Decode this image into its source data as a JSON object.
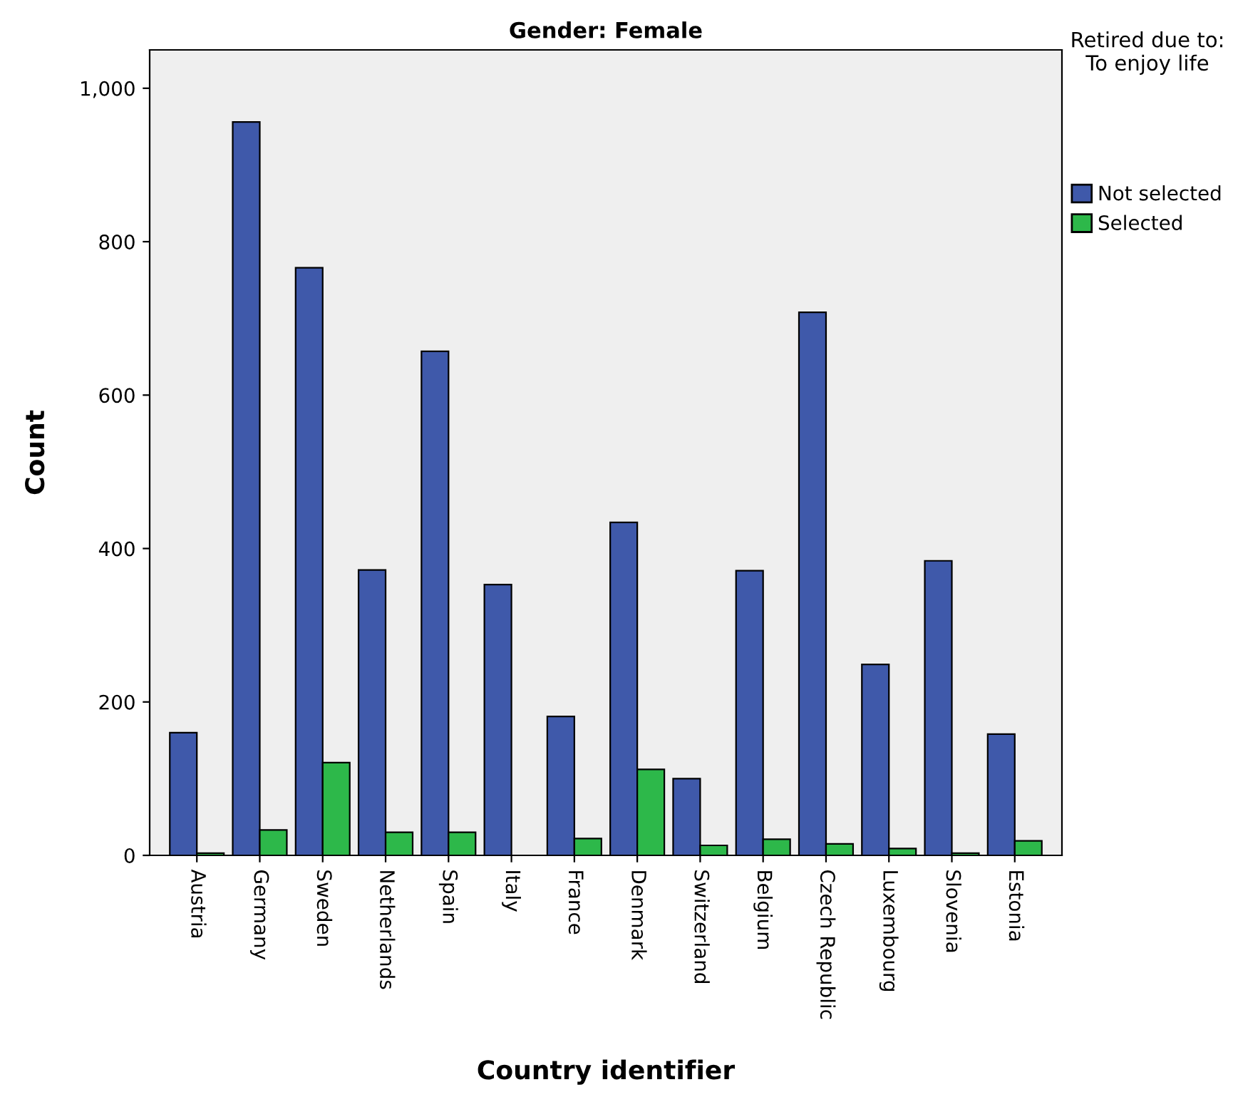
{
  "chart_data": {
    "type": "bar",
    "title": "Gender: Female",
    "xlabel": "Country identifier",
    "ylabel": "Count",
    "legend_title": "Retired due to: To enjoy life",
    "legend": "right",
    "categories": [
      "Austria",
      "Germany",
      "Sweden",
      "Netherlands",
      "Spain",
      "Italy",
      "France",
      "Denmark",
      "Switzerland",
      "Belgium",
      "Czech Republic",
      "Luxembourg",
      "Slovenia",
      "Estonia"
    ],
    "series": [
      {
        "name": "Not selected",
        "color": "#3f59aa",
        "values": [
          160,
          956,
          766,
          372,
          657,
          353,
          181,
          434,
          100,
          371,
          708,
          249,
          384,
          158
        ]
      },
      {
        "name": "Selected",
        "color": "#2db84a",
        "values": [
          3,
          33,
          121,
          30,
          30,
          null,
          22,
          112,
          13,
          21,
          15,
          9,
          3,
          19
        ]
      }
    ],
    "ylim": [
      0,
      1050
    ],
    "yticks": [
      {
        "value": 0,
        "label": "0"
      },
      {
        "value": 200,
        "label": "200"
      },
      {
        "value": 400,
        "label": "400"
      },
      {
        "value": 600,
        "label": "600"
      },
      {
        "value": 800,
        "label": "800"
      },
      {
        "value": 1000,
        "label": "1,000"
      }
    ],
    "grid": false
  }
}
